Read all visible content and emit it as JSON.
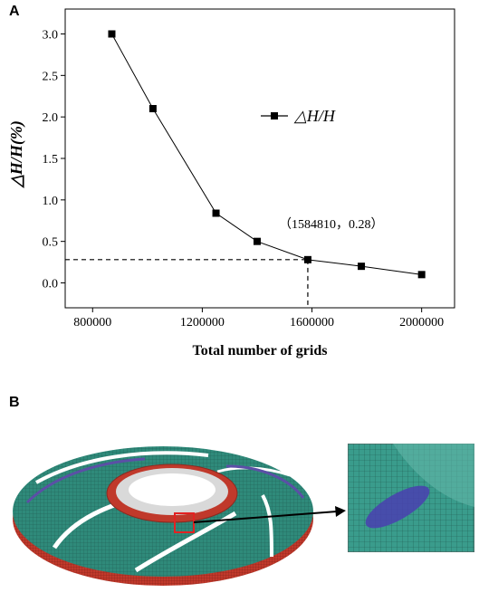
{
  "panels": {
    "a_label": "A",
    "b_label": "B"
  },
  "chart_data": {
    "type": "line",
    "xlabel": "Total number of grids",
    "ylabel": "△H/H(%)",
    "xlim": [
      700000,
      2120000
    ],
    "ylim": [
      -0.3,
      3.3
    ],
    "xticks": [
      800000,
      1200000,
      1600000,
      2000000
    ],
    "yticks": [
      0.0,
      0.5,
      1.0,
      1.5,
      2.0,
      2.5,
      3.0
    ],
    "xtick_labels": [
      "800000",
      "1200000",
      "1600000",
      "2000000"
    ],
    "ytick_labels": [
      "0.0",
      "0.5",
      "1.0",
      "1.5",
      "2.0",
      "2.5",
      "3.0"
    ],
    "series": [
      {
        "name": "△H/H",
        "x": [
          870000,
          1020000,
          1250000,
          1400000,
          1584810,
          1780000,
          2000000
        ],
        "y": [
          3.0,
          2.1,
          0.84,
          0.5,
          0.28,
          0.2,
          0.1
        ]
      }
    ],
    "annotation": {
      "text": "（1584810，0.28）",
      "x": 1584810,
      "y": 0.28
    },
    "legend": "top-right",
    "grid": false
  },
  "colors": {
    "mesh_teal": "#2f8a7a",
    "mesh_purple": "#5b4fa6",
    "mesh_red": "#c0392b",
    "highlight_box": "#e32222",
    "inset_bg": "#3a9c8c"
  }
}
